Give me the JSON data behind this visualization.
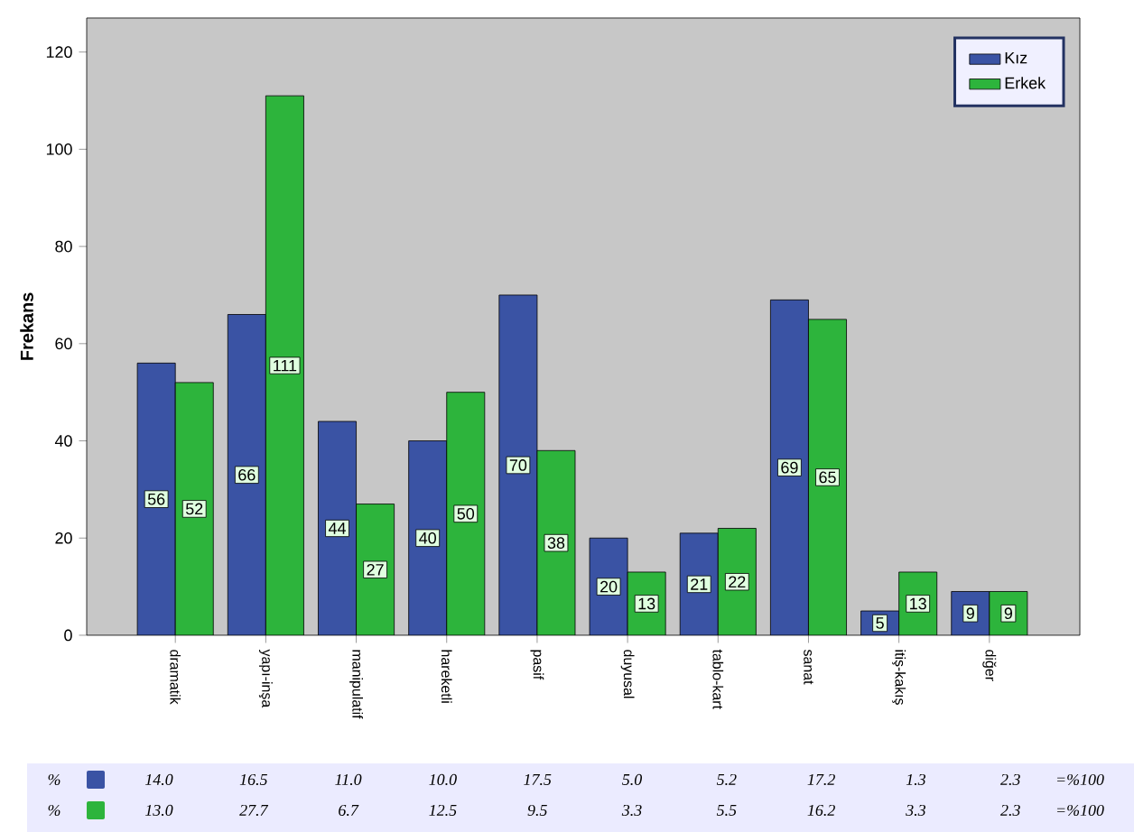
{
  "chart_data": {
    "type": "bar",
    "ylabel": "Frekans",
    "categories": [
      "dramatik",
      "yapı-inşa",
      "manipulatif",
      "hareketli",
      "pasif",
      "duyusal",
      "tablo-kart",
      "sanat",
      "itiş-kakış",
      "diğer"
    ],
    "series": [
      {
        "name": "Kız",
        "color": "#3a53a4",
        "values": [
          56,
          66,
          44,
          40,
          70,
          20,
          21,
          69,
          5,
          9
        ]
      },
      {
        "name": "Erkek",
        "color": "#2db43c",
        "values": [
          52,
          111,
          27,
          50,
          38,
          13,
          22,
          65,
          13,
          9
        ]
      }
    ],
    "ylim": [
      0,
      127
    ],
    "yticks": [
      0,
      20,
      40,
      60,
      80,
      100,
      120
    ],
    "data_labels": true,
    "legend": "top right",
    "annotations": [
      "%",
      "14.0",
      "16.5",
      "11.0",
      "10.0",
      "17.5",
      "5.0",
      "5.2",
      "17.2",
      "1.3",
      "2.3",
      "=%100",
      "%",
      "13.0",
      "27.7",
      "6.7",
      "12.5",
      "9.5",
      "3.3",
      "5.5",
      "16.2",
      "3.3",
      "2.3",
      "=%100"
    ]
  }
}
